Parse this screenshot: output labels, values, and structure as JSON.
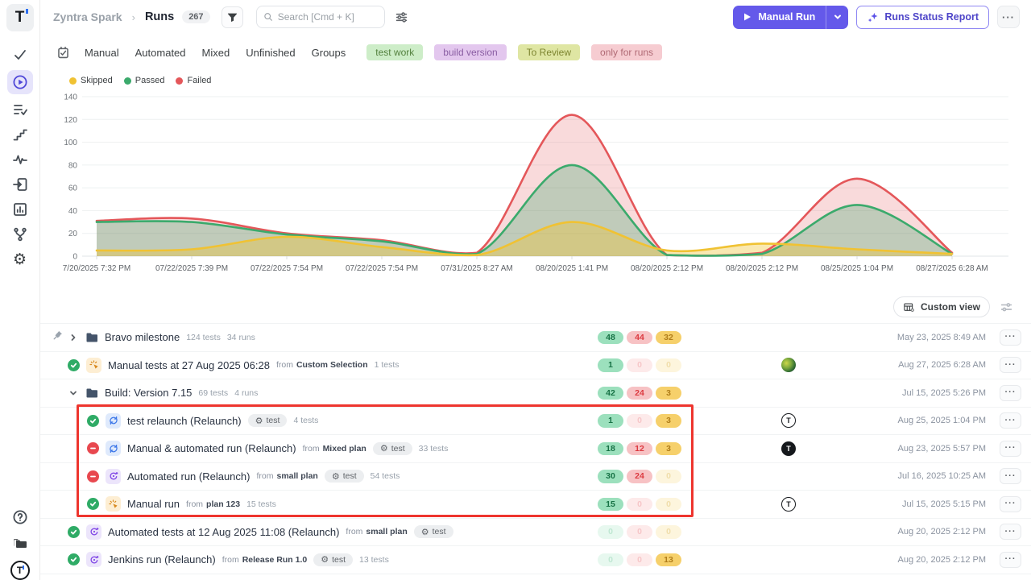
{
  "brand": {
    "letter": "T"
  },
  "ui": {
    "dots": "···",
    "gear_glyph": "⚙",
    "help_glyph": "?"
  },
  "sidebar": {
    "icons": [
      "check-icon",
      "play-circle-icon",
      "list-check-icon",
      "steps-icon",
      "pulse-icon",
      "import-icon",
      "chart-box-icon",
      "branch-icon",
      "gear-icon"
    ],
    "bottom_icons": [
      "help-icon",
      "folders-icon",
      "brand-logo"
    ],
    "active": "play-circle-icon"
  },
  "topbar": {
    "project": "Zyntra Spark",
    "separator": "›",
    "page": "Runs",
    "count": "267",
    "search_placeholder": "Search [Cmd + K]",
    "manual_run": "Manual Run",
    "runs_status_report": "Runs Status Report",
    "primary_color": "#6459ea"
  },
  "tabs": {
    "items": [
      "Manual",
      "Automated",
      "Mixed",
      "Unfinished",
      "Groups"
    ],
    "tags": [
      {
        "label": "test work",
        "bg": "#cdedc8",
        "fg": "#53813e"
      },
      {
        "label": "build version",
        "bg": "#e3c7ee",
        "fg": "#8a5ea3"
      },
      {
        "label": "To Review",
        "bg": "#dfe6a3",
        "fg": "#7d8530"
      },
      {
        "label": "only for runs",
        "bg": "#f6ccd1",
        "fg": "#b06a75"
      }
    ]
  },
  "chart_data": {
    "type": "area",
    "x_labels": [
      "7/20/2025 7:32 PM",
      "07/22/2025 7:39 PM",
      "07/22/2025 7:54 PM",
      "07/22/2025 7:54 PM",
      "07/31/2025 8:27 AM",
      "08/20/2025 1:41 PM",
      "08/20/2025 2:12 PM",
      "08/20/2025 2:12 PM",
      "08/25/2025 1:04 PM",
      "08/27/2025 6:28 AM"
    ],
    "series": [
      {
        "name": "Skipped",
        "color": "#F0C233",
        "fill_opacity": 0.38,
        "values": [
          5,
          6,
          17,
          8,
          1,
          30,
          5,
          11,
          6,
          2
        ]
      },
      {
        "name": "Passed",
        "color": "#3BAA6C",
        "fill_opacity": 0.3,
        "values": [
          30,
          30,
          19,
          13,
          2,
          80,
          1,
          2,
          45,
          2
        ]
      },
      {
        "name": "Failed",
        "color": "#E4575A",
        "fill_opacity": 0.22,
        "values": [
          31,
          33,
          20,
          14,
          3,
          124,
          1,
          3,
          68,
          3
        ]
      }
    ],
    "ylim": [
      0,
      140
    ],
    "ytick_step": 20,
    "grid": true,
    "legend_position": "top-left"
  },
  "viewbar": {
    "custom_view": "Custom view"
  },
  "rows": [
    {
      "type": "folder",
      "pinned": true,
      "state": "collapsed",
      "title": "Bravo milestone",
      "tests": "124 tests",
      "runs": "34 runs",
      "counts": {
        "passed": "48",
        "failed": "44",
        "skipped": "32"
      },
      "date": "May 23, 2025 8:49 AM"
    },
    {
      "type": "run",
      "status": "passed",
      "run_kind": "manual",
      "title": "Manual tests at 27 Aug 2025 06:28",
      "from_label": "from",
      "from": "Custom Selection",
      "tests": "1 tests",
      "counts": {
        "passed": "1",
        "failed": "0",
        "skipped": "0"
      },
      "avatar": "photo-avatar",
      "date": "Aug 27, 2025 6:28 AM"
    },
    {
      "type": "folder",
      "state": "expanded",
      "title": "Build: Version 7.15",
      "tests": "69 tests",
      "runs": "4 runs",
      "counts": {
        "passed": "42",
        "failed": "24",
        "skipped": "3"
      },
      "date": "Jul 15, 2025 5:26 PM"
    },
    {
      "type": "run",
      "status": "passed",
      "run_kind": "relaunch",
      "title": "test relaunch (Relaunch)",
      "tag": "test",
      "tests": "4 tests",
      "counts": {
        "passed": "1",
        "failed": "0",
        "skipped": "3"
      },
      "avatar": "t-logo-light",
      "date": "Aug 25, 2025 1:04 PM",
      "highlighted": true
    },
    {
      "type": "run",
      "status": "failed",
      "run_kind": "relaunch",
      "title": "Manual & automated run (Relaunch)",
      "from_label": "from",
      "from": "Mixed plan",
      "tag": "test",
      "tests": "33 tests",
      "counts": {
        "passed": "18",
        "failed": "12",
        "skipped": "3"
      },
      "avatar": "t-logo-dark",
      "date": "Aug 23, 2025 5:57 PM",
      "highlighted": true
    },
    {
      "type": "run",
      "status": "failed",
      "run_kind": "automated",
      "title": "Automated run (Relaunch)",
      "from_label": "from",
      "from": "small plan",
      "tag": "test",
      "tests": "54 tests",
      "counts": {
        "passed": "30",
        "failed": "24",
        "skipped": "0"
      },
      "date": "Jul 16, 2025 10:25 AM",
      "highlighted": true
    },
    {
      "type": "run",
      "status": "passed",
      "run_kind": "manual",
      "title": "Manual run",
      "from_label": "from",
      "from": "plan 123",
      "tests": "15 tests",
      "counts": {
        "passed": "15",
        "failed": "0",
        "skipped": "0"
      },
      "avatar": "t-logo-light",
      "date": "Jul 15, 2025 5:15 PM",
      "highlighted": true
    },
    {
      "type": "run",
      "status": "passed",
      "run_kind": "automated",
      "title": "Automated tests at 12 Aug 2025 11:08 (Relaunch)",
      "from_label": "from",
      "from": "small plan",
      "tag": "test",
      "counts": {
        "passed": "0",
        "failed": "0",
        "skipped": "0"
      },
      "date": "Aug 20, 2025 2:12 PM"
    },
    {
      "type": "run",
      "status": "passed",
      "run_kind": "automated",
      "title": "Jenkins run (Relaunch)",
      "from_label": "from",
      "from": "Release Run 1.0",
      "tag": "test",
      "tests": "13 tests",
      "counts": {
        "passed": "0",
        "failed": "0",
        "skipped": "13"
      },
      "date": "Aug 20, 2025 2:12 PM"
    }
  ]
}
